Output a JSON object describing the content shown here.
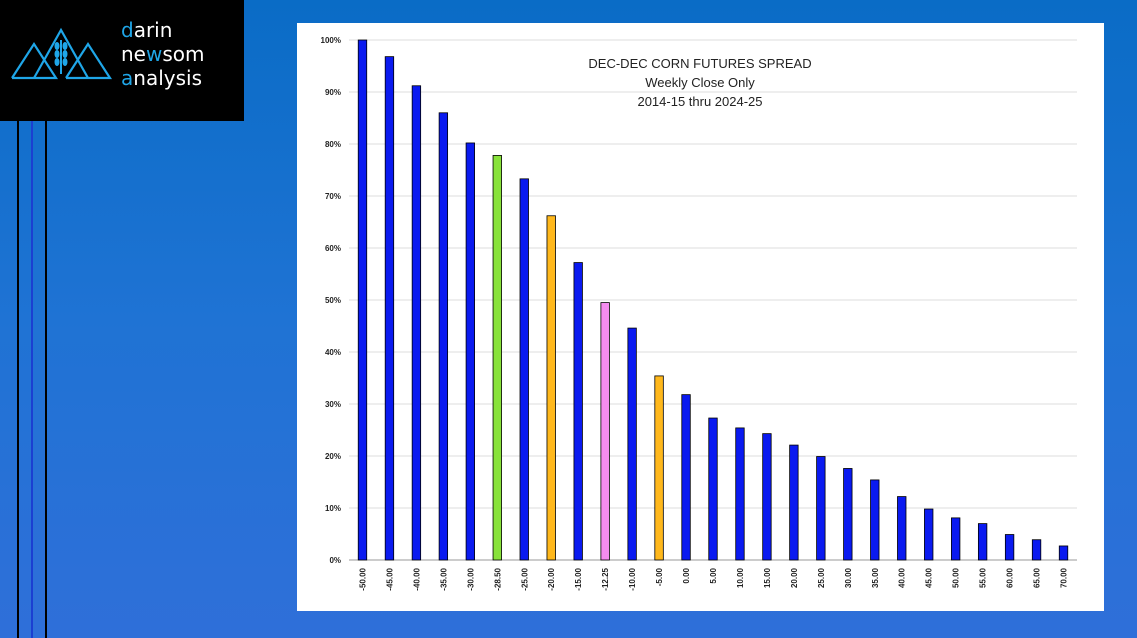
{
  "logo": {
    "line1_accent": "d",
    "line1_rest": "arin",
    "line2_accent": "ne",
    "line2_mid": "w",
    "line2_rest": "som",
    "line3_accent": "a",
    "line3_rest": "nalysis",
    "mark_icon": "mountains-wheat-icon"
  },
  "colors": {
    "blue": "#0a1af0",
    "green": "#88e23a",
    "orange": "#ffb81c",
    "pink": "#f58cf0"
  },
  "chart_data": {
    "type": "bar",
    "title": [
      "DEC-DEC CORN FUTURES SPREAD",
      "Weekly Close Only",
      "2014-15 thru 2024-25"
    ],
    "categories": [
      "-50.00",
      "-45.00",
      "-40.00",
      "-35.00",
      "-30.00",
      "-28.50",
      "-25.00",
      "-20.00",
      "-15.00",
      "-12.25",
      "-10.00",
      "-5.00",
      "0.00",
      "5.00",
      "10.00",
      "15.00",
      "20.00",
      "25.00",
      "30.00",
      "35.00",
      "40.00",
      "45.00",
      "50.00",
      "55.00",
      "60.00",
      "65.00",
      "70.00"
    ],
    "values": [
      100,
      96.8,
      91.2,
      86,
      80.2,
      77.8,
      73.3,
      66.2,
      57.2,
      49.5,
      44.6,
      35.4,
      31.8,
      27.3,
      25.4,
      24.3,
      22.1,
      19.9,
      17.6,
      15.4,
      12.2,
      9.8,
      8.1,
      7,
      4.9,
      3.9,
      2.7
    ],
    "colors": [
      "blue",
      "blue",
      "blue",
      "blue",
      "blue",
      "green",
      "blue",
      "orange",
      "blue",
      "pink",
      "blue",
      "orange",
      "blue",
      "blue",
      "blue",
      "blue",
      "blue",
      "blue",
      "blue",
      "blue",
      "blue",
      "blue",
      "blue",
      "blue",
      "blue",
      "blue",
      "blue"
    ],
    "yticks": [
      "0%",
      "10%",
      "20%",
      "30%",
      "40%",
      "50%",
      "60%",
      "70%",
      "80%",
      "90%",
      "100%"
    ],
    "ylim": [
      0,
      100
    ],
    "xlabel": "",
    "ylabel": "",
    "grid": true
  }
}
